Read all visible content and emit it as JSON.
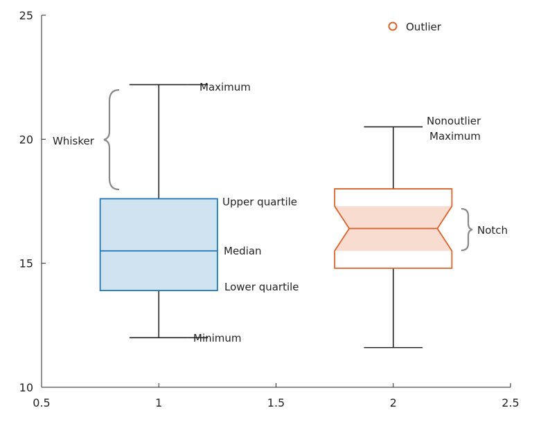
{
  "chart_data": {
    "type": "box",
    "xlim": [
      0.5,
      2.5
    ],
    "ylim": [
      10,
      25
    ],
    "x_ticks": [
      0.5,
      1,
      1.5,
      2,
      2.5
    ],
    "x_tick_labels": [
      "0.5",
      "1",
      "1.5",
      "2",
      "2.5"
    ],
    "y_ticks": [
      10,
      15,
      20,
      25
    ],
    "y_tick_labels": [
      "10",
      "15",
      "20",
      "25"
    ],
    "boxes": [
      {
        "position": 1,
        "notched": false,
        "minimum": 12.0,
        "lower_quartile": 13.9,
        "median": 15.5,
        "upper_quartile": 17.6,
        "maximum": 22.2,
        "color": "#1f77b4",
        "fill": "#cfe3f1"
      },
      {
        "position": 2,
        "notched": true,
        "minimum": 11.6,
        "lower_quartile": 14.8,
        "median": 16.4,
        "upper_quartile": 18.0,
        "maximum": 20.5,
        "notch_low": 15.5,
        "notch_high": 17.3,
        "outliers": [],
        "color": "#d9622b",
        "fill": "#f8dcd0"
      }
    ],
    "legend": {
      "label": "Outlier",
      "position": "top-right"
    },
    "annotations": {
      "whisker": "Whisker",
      "maximum": "Maximum",
      "upper_quartile": "Upper quartile",
      "median": "Median",
      "lower_quartile": "Lower quartile",
      "minimum": "Minimum",
      "nonoutlier_max_line1": "Nonoutlier",
      "nonoutlier_max_line2": "Maximum",
      "notch": "Notch"
    }
  }
}
